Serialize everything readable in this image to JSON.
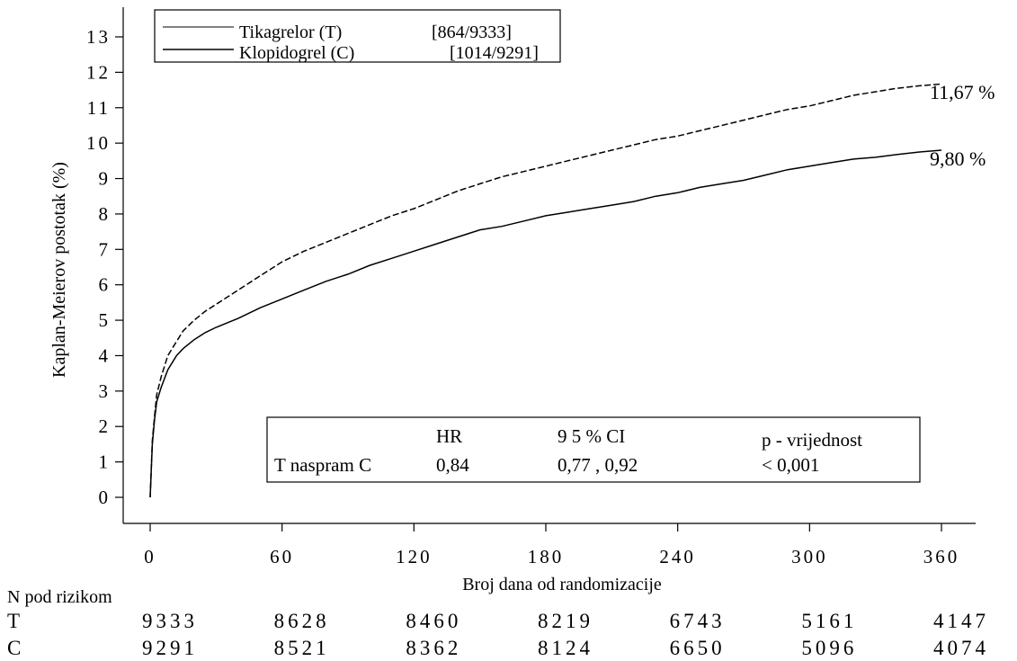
{
  "chart_data": {
    "type": "line",
    "xlabel": "Broj dana od randomizacije",
    "ylabel": "Kaplan-Meierov postotak (%)",
    "xlim": [
      0,
      360
    ],
    "ylim": [
      0,
      13
    ],
    "x_ticks": [
      0,
      60,
      120,
      180,
      240,
      300,
      360
    ],
    "y_ticks": [
      0,
      1,
      2,
      3,
      4,
      5,
      6,
      7,
      8,
      9,
      10,
      11,
      12,
      13
    ],
    "x_tick_labels": [
      "0",
      "60",
      "120",
      "180",
      "240",
      "300",
      "360"
    ],
    "y_tick_labels": [
      "0",
      "1",
      "2",
      "3",
      "4",
      "5",
      "6",
      "7",
      "8",
      "9",
      "10",
      "11",
      "12",
      "13"
    ],
    "grid": false,
    "legend_position": "top-left",
    "series": [
      {
        "name": "Klopidogrel (C)",
        "legend_count": "[1014/9291]",
        "style": "dashed",
        "end_label": "11,67 %",
        "x": [
          0,
          1,
          2,
          3,
          5,
          8,
          12,
          15,
          20,
          25,
          30,
          40,
          50,
          60,
          70,
          80,
          90,
          100,
          110,
          120,
          130,
          140,
          150,
          160,
          170,
          180,
          190,
          200,
          210,
          220,
          230,
          240,
          250,
          260,
          270,
          280,
          290,
          300,
          310,
          320,
          330,
          340,
          350,
          360
        ],
        "values": [
          0,
          1.6,
          2.3,
          2.9,
          3.4,
          4.0,
          4.4,
          4.7,
          5.0,
          5.25,
          5.45,
          5.85,
          6.25,
          6.65,
          6.95,
          7.2,
          7.45,
          7.7,
          7.95,
          8.15,
          8.4,
          8.65,
          8.85,
          9.05,
          9.2,
          9.35,
          9.5,
          9.65,
          9.8,
          9.95,
          10.1,
          10.2,
          10.35,
          10.5,
          10.65,
          10.8,
          10.95,
          11.05,
          11.2,
          11.35,
          11.45,
          11.55,
          11.62,
          11.67
        ]
      },
      {
        "name": "Tikagrelor (T)",
        "legend_count": "[864/9333]",
        "style": "solid",
        "end_label": "9,80 %",
        "x": [
          0,
          1,
          2,
          3,
          5,
          8,
          12,
          15,
          20,
          25,
          30,
          40,
          50,
          60,
          70,
          80,
          90,
          100,
          110,
          120,
          130,
          140,
          150,
          160,
          170,
          180,
          190,
          200,
          210,
          220,
          230,
          240,
          250,
          260,
          270,
          280,
          290,
          300,
          310,
          320,
          330,
          340,
          350,
          360
        ],
        "values": [
          0,
          1.5,
          2.2,
          2.7,
          3.1,
          3.6,
          4.0,
          4.2,
          4.45,
          4.65,
          4.8,
          5.05,
          5.35,
          5.6,
          5.85,
          6.1,
          6.3,
          6.55,
          6.75,
          6.95,
          7.15,
          7.35,
          7.55,
          7.65,
          7.8,
          7.95,
          8.05,
          8.15,
          8.25,
          8.35,
          8.5,
          8.6,
          8.75,
          8.85,
          8.95,
          9.1,
          9.25,
          9.35,
          9.45,
          9.55,
          9.6,
          9.68,
          9.75,
          9.8
        ]
      }
    ],
    "stats_table": {
      "headers": [
        "",
        "HR",
        "9 5 % CI",
        "p - vrijednost"
      ],
      "row": [
        "T naspram C",
        "0,84",
        "0,77 , 0,92",
        "< 0,001"
      ]
    },
    "risk_table": {
      "title": "N pod rizikom",
      "rows": [
        {
          "label": "T",
          "values": [
            "9333",
            "8628",
            "8460",
            "8219",
            "6743",
            "5161",
            "4147"
          ]
        },
        {
          "label": "C",
          "values": [
            "9291",
            "8521",
            "8362",
            "8124",
            "6650",
            "5096",
            "4074"
          ]
        }
      ]
    }
  }
}
